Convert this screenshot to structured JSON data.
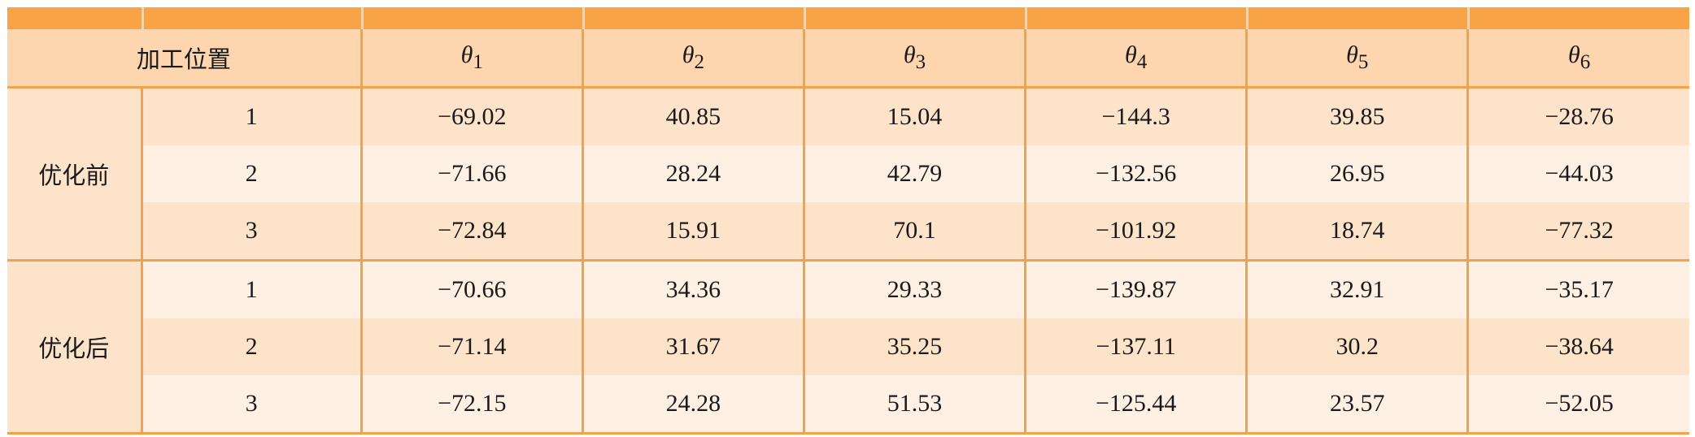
{
  "table": {
    "header": {
      "position_label": "加工位置",
      "columns": [
        {
          "symbol": "θ",
          "sub": "1"
        },
        {
          "symbol": "θ",
          "sub": "2"
        },
        {
          "symbol": "θ",
          "sub": "3"
        },
        {
          "symbol": "θ",
          "sub": "4"
        },
        {
          "symbol": "θ",
          "sub": "5"
        },
        {
          "symbol": "θ",
          "sub": "6"
        }
      ]
    },
    "groups": [
      {
        "label": "优化前",
        "rows": [
          {
            "pos": "1",
            "values": [
              "−69.02",
              "40.85",
              "15.04",
              "−144.3",
              "39.85",
              "−28.76"
            ]
          },
          {
            "pos": "2",
            "values": [
              "−71.66",
              "28.24",
              "42.79",
              "−132.56",
              "26.95",
              "−44.03"
            ]
          },
          {
            "pos": "3",
            "values": [
              "−72.84",
              "15.91",
              "70.1",
              "−101.92",
              "18.74",
              "−77.32"
            ]
          }
        ]
      },
      {
        "label": "优化后",
        "rows": [
          {
            "pos": "1",
            "values": [
              "−70.66",
              "34.36",
              "29.33",
              "−139.87",
              "32.91",
              "−35.17"
            ]
          },
          {
            "pos": "2",
            "values": [
              "−71.14",
              "31.67",
              "35.25",
              "−137.11",
              "30.2",
              "−38.64"
            ]
          },
          {
            "pos": "3",
            "values": [
              "−72.15",
              "24.28",
              "51.53",
              "−125.44",
              "23.57",
              "−52.05"
            ]
          }
        ]
      }
    ],
    "colors": {
      "accent": "#f7a346",
      "header_bg": "#fdd5ae",
      "row_dark": "#fde3c9",
      "row_light": "#fef1e3",
      "rule": "#f3a24c"
    }
  }
}
